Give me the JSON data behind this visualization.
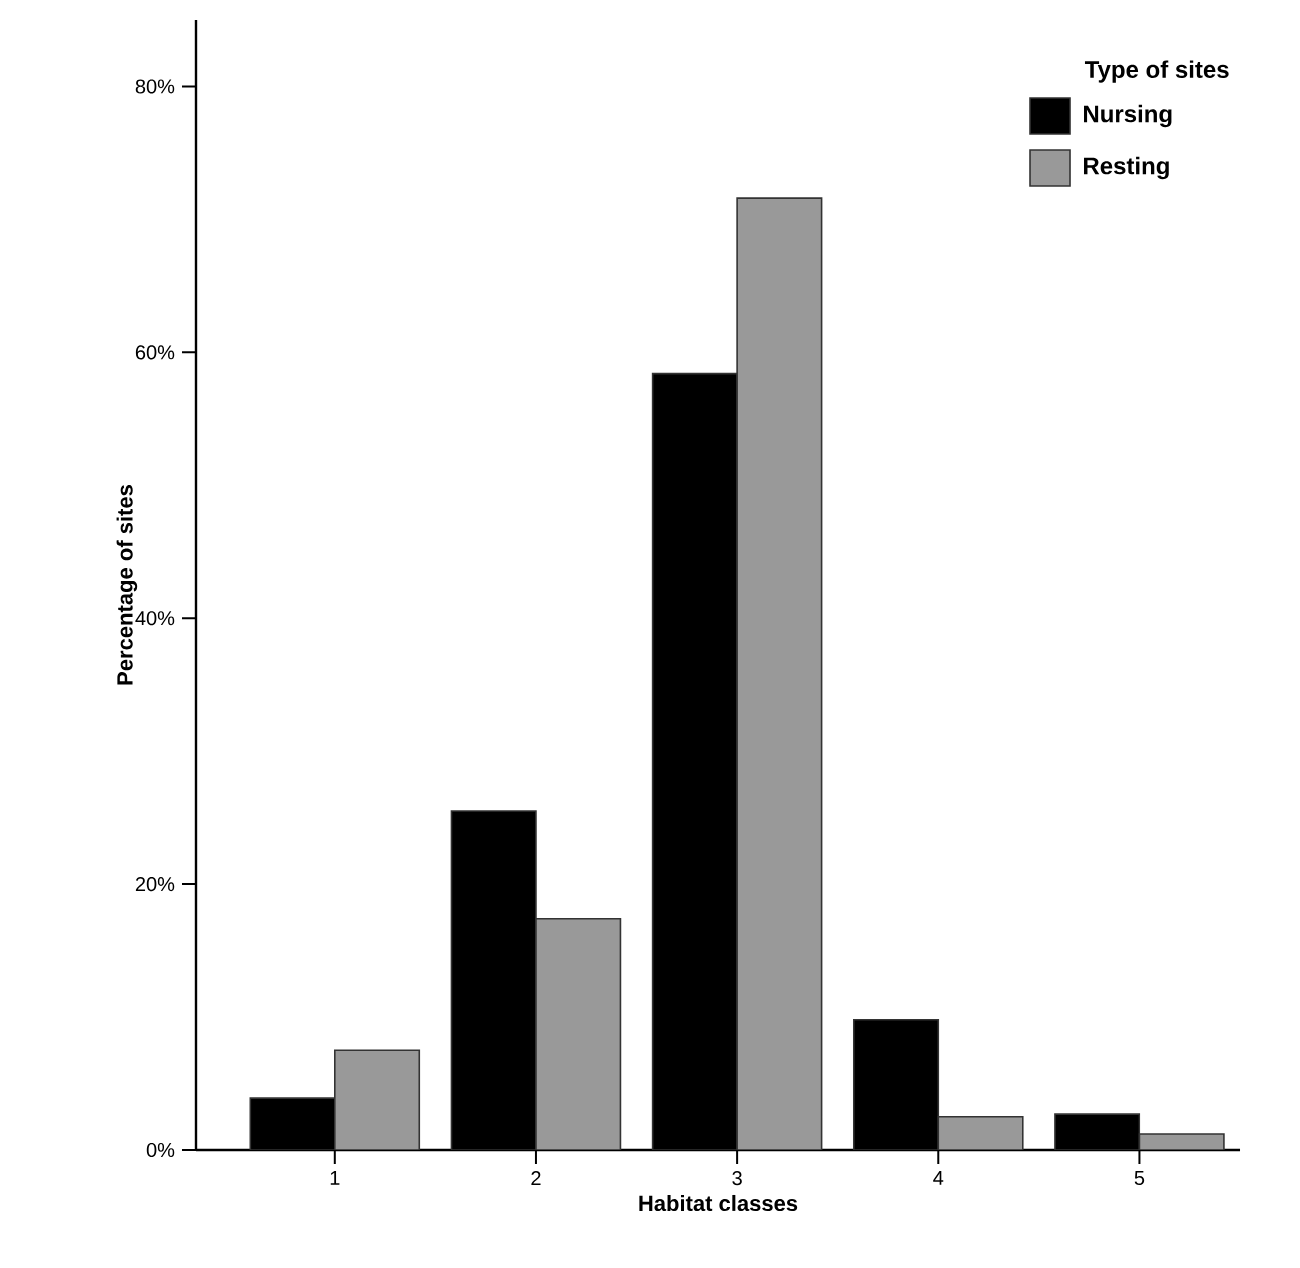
{
  "chart_data": {
    "type": "bar",
    "xlabel": "Habitat classes",
    "ylabel": "Percentage of sites",
    "legend_title": "Type of sites",
    "categories": [
      "1",
      "2",
      "3",
      "4",
      "5"
    ],
    "series": [
      {
        "name": "Nursing",
        "color": "#000000",
        "values": [
          3.9,
          25.5,
          58.4,
          9.8,
          2.7
        ]
      },
      {
        "name": "Resting",
        "color": "#999999",
        "values": [
          7.5,
          17.4,
          71.6,
          2.5,
          1.2
        ]
      }
    ],
    "ylim": [
      0,
      85
    ],
    "yticks": [
      {
        "value": 0,
        "label": "0%"
      },
      {
        "value": 20,
        "label": "20%"
      },
      {
        "value": 40,
        "label": "40%"
      },
      {
        "value": 60,
        "label": "60%"
      },
      {
        "value": 80,
        "label": "80%"
      }
    ],
    "legend": "top right",
    "grid": false
  }
}
